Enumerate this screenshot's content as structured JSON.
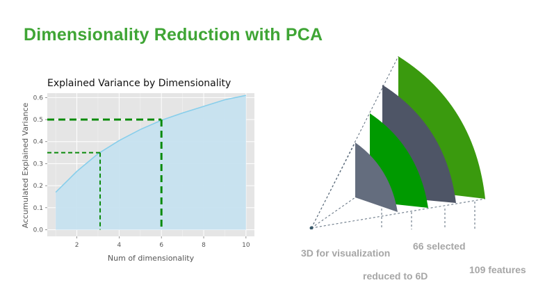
{
  "slide": {
    "title": "Dimensionality Reduction with PCA"
  },
  "chart_data": {
    "type": "area",
    "title": "Explained Variance by Dimensionality",
    "xlabel": "Num of dimensionality",
    "ylabel": "Accumulated Explained Variance",
    "x": [
      1,
      2,
      3,
      4,
      5,
      6,
      7,
      8,
      9,
      10
    ],
    "y": [
      0.17,
      0.265,
      0.345,
      0.405,
      0.455,
      0.497,
      0.53,
      0.56,
      0.59,
      0.61
    ],
    "xlim": [
      0.6,
      10.4
    ],
    "ylim": [
      -0.03,
      0.62
    ],
    "xticks": [
      2,
      4,
      6,
      8,
      10
    ],
    "yticks": [
      0.0,
      0.1,
      0.2,
      0.3,
      0.4,
      0.5,
      0.6
    ],
    "grid": true,
    "style": "ggplot",
    "line_color": "#87ceeb",
    "fill_color": "#c6e2ef",
    "background_color": "#e5e5e5",
    "markers": [
      {
        "x": 3.1,
        "y": 0.35,
        "color": "#0a8a0a",
        "style": "dashed"
      },
      {
        "x": 6.0,
        "y": 0.5,
        "color": "#0a8a0a",
        "style": "dashed"
      }
    ]
  },
  "diagram": {
    "labels": [
      {
        "id": "3d",
        "text": "3D for visualization"
      },
      {
        "id": "6d",
        "text": "reduced to 6D"
      },
      {
        "id": "66",
        "text": "66 selected"
      },
      {
        "id": "109",
        "text": "109 features"
      }
    ],
    "colors": {
      "slate_light": "#646d7e",
      "slate_dark": "#4e5566",
      "green_bright": "#009a00",
      "green_olive": "#3a9a0e",
      "label_gray": "#a6a6a6"
    }
  }
}
